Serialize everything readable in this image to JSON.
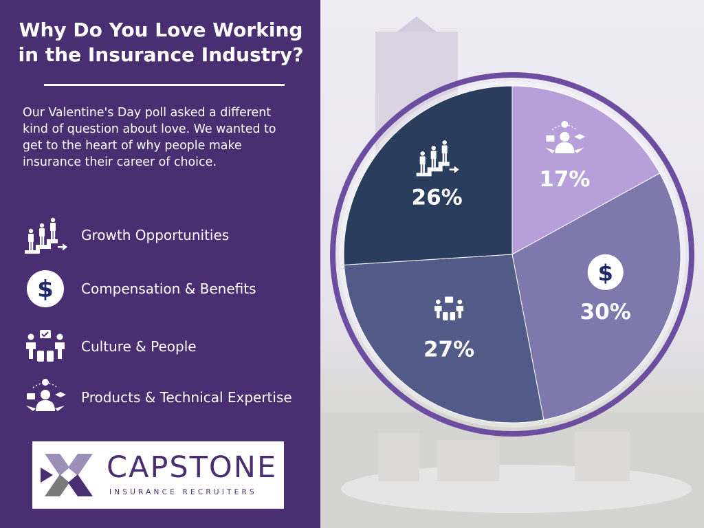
{
  "header": {
    "title_line1": "Why Do You Love Working",
    "title_line2": "in the Insurance Industry?"
  },
  "intro": {
    "line1": "Our Valentine's Day poll asked a different",
    "line2": "kind of question about love. We wanted to",
    "line3": "get to the heart of why people make",
    "line4": "insurance their career of choice."
  },
  "legend": [
    {
      "label": "Growth Opportunities",
      "icon": "growth-stairs-icon"
    },
    {
      "label": "Compensation & Benefits",
      "icon": "dollar-icon"
    },
    {
      "label": "Culture & People",
      "icon": "team-icon"
    },
    {
      "label": "Products & Technical Expertise",
      "icon": "expert-icon"
    }
  ],
  "logo": {
    "wordmark": "CAPSTONE",
    "tagline": "INSURANCE RECRUITERS"
  },
  "colors": {
    "panel": "#4a2e72",
    "ring": "#6b4ea0",
    "products": "#b7a0d9",
    "compensation": "#7e78ad",
    "culture": "#525a87",
    "growth": "#2b3d5c"
  },
  "chart_data": {
    "type": "pie",
    "slices": [
      {
        "category": "Products & Technical Expertise",
        "value": 17,
        "label": "17%",
        "color": "#b7a0d9",
        "icon": "expert-icon"
      },
      {
        "category": "Compensation & Benefits",
        "value": 30,
        "label": "30%",
        "color": "#7e78ad",
        "icon": "dollar-icon"
      },
      {
        "category": "Culture & People",
        "value": 27,
        "label": "27%",
        "color": "#525a87",
        "icon": "team-icon"
      },
      {
        "category": "Growth Opportunities",
        "value": 26,
        "label": "26%",
        "color": "#2b3d5c",
        "icon": "growth-stairs-icon"
      }
    ],
    "start": "12 o'clock",
    "direction": "clockwise"
  }
}
